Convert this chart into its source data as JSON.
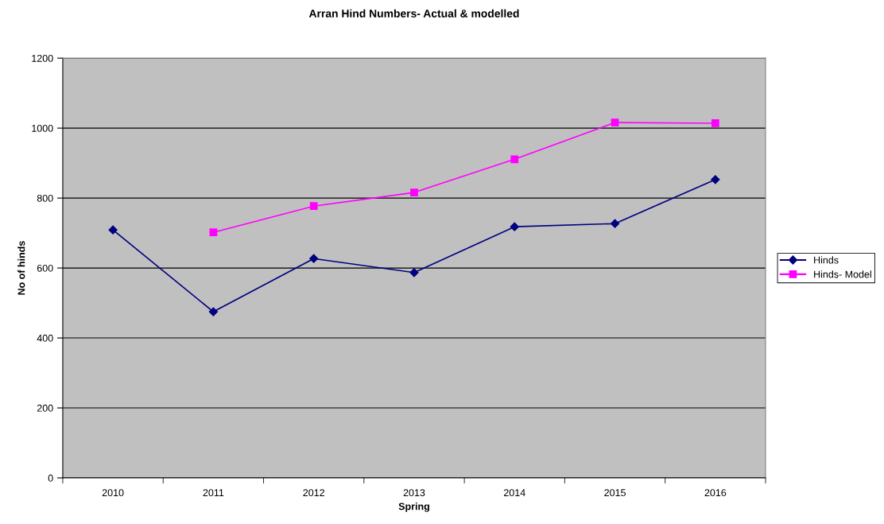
{
  "chart_data": {
    "type": "line",
    "title": "Arran Hind Numbers- Actual & modelled",
    "xlabel": "Spring",
    "ylabel": "No of hinds",
    "categories": [
      "2010",
      "2011",
      "2012",
      "2013",
      "2014",
      "2015",
      "2016"
    ],
    "series": [
      {
        "name": "Hinds",
        "color": "#000080",
        "marker": "diamond",
        "values": [
          709,
          475,
          627,
          587,
          718,
          727,
          853
        ]
      },
      {
        "name": "Hinds- Model",
        "color": "#ff00ff",
        "marker": "square",
        "values": [
          null,
          702,
          777,
          816,
          911,
          1016,
          1014
        ]
      }
    ],
    "ylim": [
      0,
      1200
    ],
    "yticks": [
      0,
      200,
      400,
      600,
      800,
      1000,
      1200
    ],
    "grid": "y",
    "legend": "right",
    "line_style": "solid"
  }
}
